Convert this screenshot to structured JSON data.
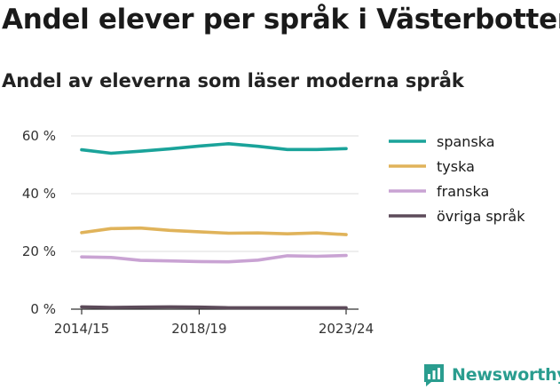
{
  "chart_data": {
    "type": "line",
    "title": "Andel elever per språk i Västerbotten",
    "subtitle": "Andel av eleverna som läser moderna språk",
    "xlabel": "",
    "ylabel": "",
    "categories": [
      "2014/15",
      "2015/16",
      "2016/17",
      "2017/18",
      "2018/19",
      "2019/20",
      "2020/21",
      "2021/22",
      "2022/23",
      "2023/24"
    ],
    "x_tick_labels": [
      "2014/15",
      "2018/19",
      "2023/24"
    ],
    "y_ticks": [
      0,
      20,
      40,
      60
    ],
    "y_tick_labels": [
      "0 %",
      "20 %",
      "40 %",
      "60 %"
    ],
    "ylim": [
      0,
      64
    ],
    "grid": true,
    "legend_position": "right",
    "series": [
      {
        "name": "spanska",
        "color": "#1aa39a",
        "values": [
          55.2,
          54.0,
          54.7,
          55.5,
          56.5,
          57.3,
          56.4,
          55.3,
          55.3,
          55.6
        ]
      },
      {
        "name": "tyska",
        "color": "#e0b35a",
        "values": [
          26.5,
          27.9,
          28.1,
          27.3,
          26.8,
          26.3,
          26.4,
          26.1,
          26.4,
          25.8
        ]
      },
      {
        "name": "franska",
        "color": "#c9a3d3",
        "values": [
          18.1,
          17.9,
          16.9,
          16.7,
          16.5,
          16.4,
          17.0,
          18.5,
          18.3,
          18.6
        ]
      },
      {
        "name": "övriga språk",
        "color": "#5d4b5a",
        "values": [
          0.8,
          0.6,
          0.7,
          0.8,
          0.7,
          0.5,
          0.5,
          0.5,
          0.5,
          0.5
        ]
      }
    ]
  },
  "logo": {
    "text": "Newsworthy",
    "icon": "bar-chart-logo-icon"
  }
}
